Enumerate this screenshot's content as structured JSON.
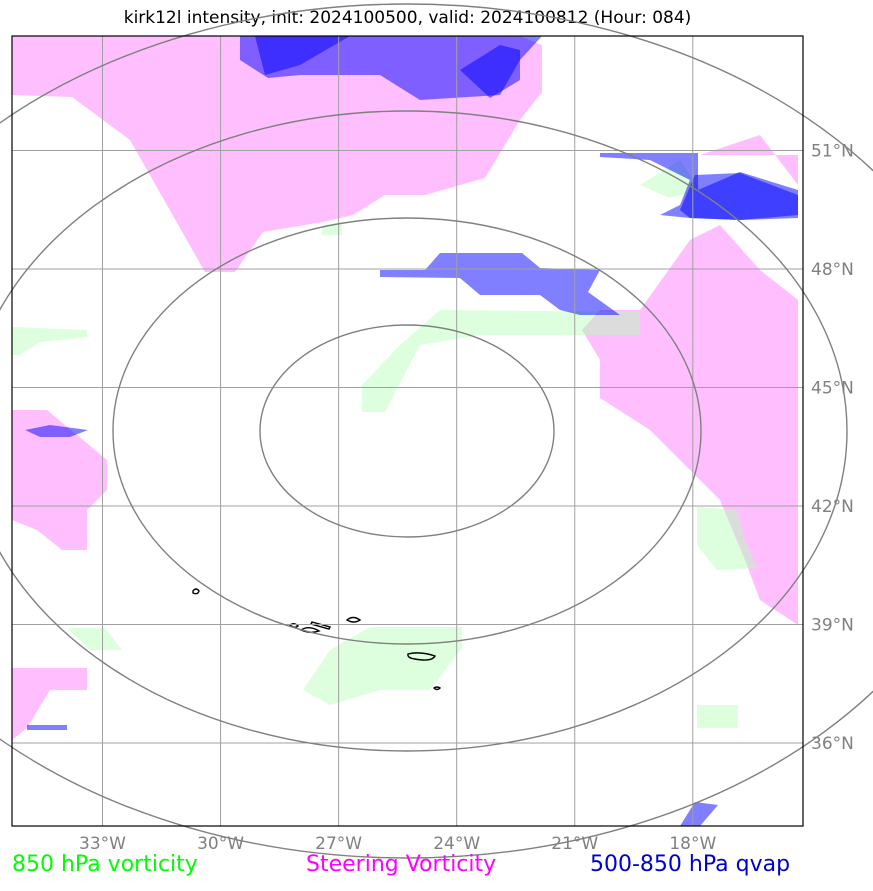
{
  "title": "kirk12l intensity, init: 2024100500, valid: 2024100812 (Hour: 084)",
  "map": {
    "lon_range": [
      -35.3,
      -15.2
    ],
    "lat_range": [
      33.9,
      53.9
    ],
    "lon_ticks": [
      {
        "value": -33,
        "label": "33°W"
      },
      {
        "value": -30,
        "label": "30°W"
      },
      {
        "value": -27,
        "label": "27°W"
      },
      {
        "value": -24,
        "label": "24°W"
      },
      {
        "value": -21,
        "label": "21°W"
      },
      {
        "value": -18,
        "label": "18°W"
      }
    ],
    "lat_ticks": [
      {
        "value": 51,
        "label": "51°N"
      },
      {
        "value": 48,
        "label": "48°N"
      },
      {
        "value": 45,
        "label": "45°N"
      },
      {
        "value": 42,
        "label": "42°N"
      },
      {
        "value": 39,
        "label": "39°N"
      },
      {
        "value": 36,
        "label": "36°N"
      }
    ],
    "grid": true,
    "range_rings": 4,
    "colors": {
      "gridline": "#a0a0a0",
      "ring": "#808080",
      "steering_vorticity": "#ff80ff",
      "vorticity_850": "#b3ffb3",
      "qvap": "#0000ff",
      "coastline": "#000000"
    }
  },
  "legend": {
    "vorticity_850": {
      "label": "850 hPa vorticity",
      "color": "#00ff00"
    },
    "steering": {
      "label": "Steering Vorticity",
      "color": "#ff00ff"
    },
    "qvap": {
      "label": "500-850 hPa qvap",
      "color": "#0000cc"
    }
  }
}
